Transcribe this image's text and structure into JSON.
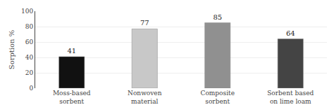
{
  "chart_data": {
    "type": "bar",
    "categories": [
      "Moss-based\nsorbent",
      "Nonwoven\nmaterial",
      "Composite\nsorbent",
      "Sorbent based\non lime loam"
    ],
    "values": [
      41,
      77,
      85,
      64
    ],
    "colors": [
      "#111111",
      "#c8c8c8",
      "#909090",
      "#444444"
    ],
    "ylabel": "Sorption %",
    "ylim": [
      0,
      100
    ],
    "yticks": [
      0,
      20,
      40,
      60,
      80,
      100
    ],
    "grid": true,
    "data_labels": true
  }
}
